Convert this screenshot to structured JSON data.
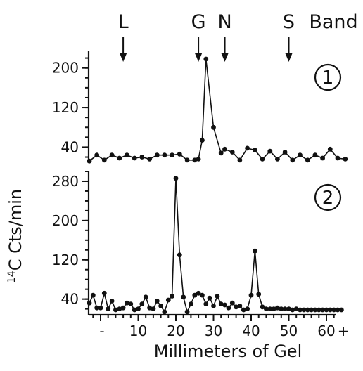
{
  "chart_data": [
    {
      "type": "line",
      "panel_label": "1",
      "x": [
        -3,
        -1,
        1,
        3,
        5,
        7,
        9,
        11,
        13,
        15,
        17,
        19,
        21,
        23,
        25,
        26,
        27,
        28,
        30,
        32,
        33,
        35,
        37,
        39,
        41,
        43,
        45,
        47,
        49,
        51,
        53,
        55,
        57,
        59,
        61,
        63,
        65
      ],
      "series": [
        {
          "values": [
            12,
            24,
            14,
            24,
            18,
            24,
            18,
            20,
            16,
            24,
            24,
            24,
            26,
            14,
            14,
            16,
            54,
            218,
            80,
            28,
            36,
            30,
            14,
            38,
            34,
            16,
            32,
            16,
            30,
            14,
            24,
            14,
            24,
            18,
            36,
            18,
            16
          ]
        }
      ],
      "ylim": [
        8,
        235
      ],
      "yticks": [
        40,
        120,
        200
      ]
    },
    {
      "type": "line",
      "panel_label": "2",
      "x": [
        -3,
        -2,
        -1,
        0,
        1,
        2,
        3,
        4,
        5,
        6,
        7,
        8,
        9,
        10,
        11,
        12,
        13,
        14,
        15,
        16,
        17,
        18,
        19,
        20,
        21,
        22,
        23,
        24,
        25,
        26,
        27,
        28,
        29,
        30,
        31,
        32,
        33,
        34,
        35,
        36,
        37,
        38,
        39,
        40,
        41,
        42,
        43,
        44,
        45,
        46,
        47,
        48,
        49,
        50,
        51,
        52,
        53,
        54,
        55,
        56,
        57,
        58,
        59,
        60,
        61,
        62,
        63,
        64
      ],
      "series": [
        {
          "values": [
            32,
            48,
            22,
            22,
            52,
            20,
            36,
            18,
            20,
            22,
            32,
            30,
            18,
            20,
            30,
            44,
            22,
            20,
            36,
            26,
            14,
            38,
            46,
            286,
            130,
            44,
            14,
            30,
            48,
            52,
            48,
            30,
            42,
            26,
            46,
            30,
            28,
            22,
            32,
            24,
            26,
            18,
            20,
            48,
            138,
            50,
            24,
            20,
            20,
            20,
            22,
            20,
            20,
            20,
            18,
            20,
            18,
            18,
            18,
            18,
            18,
            18,
            18,
            18,
            18,
            18,
            18,
            18
          ]
        }
      ],
      "ylim": [
        8,
        300
      ],
      "yticks": [
        40,
        120,
        200,
        280
      ]
    }
  ],
  "shared": {
    "xticks": [
      "-",
      "10",
      "20",
      "30",
      "40",
      "50",
      "60",
      "+"
    ],
    "xlabel": "Millimeters of Gel",
    "ylabel_sup": "14",
    "ylabel": "C Cts/min",
    "bands": [
      {
        "label": "L",
        "x": 6
      },
      {
        "label": "G",
        "x": 26
      },
      {
        "label": "N",
        "x": 33
      },
      {
        "label": "S",
        "x": 50
      }
    ],
    "band_header": "Band"
  }
}
